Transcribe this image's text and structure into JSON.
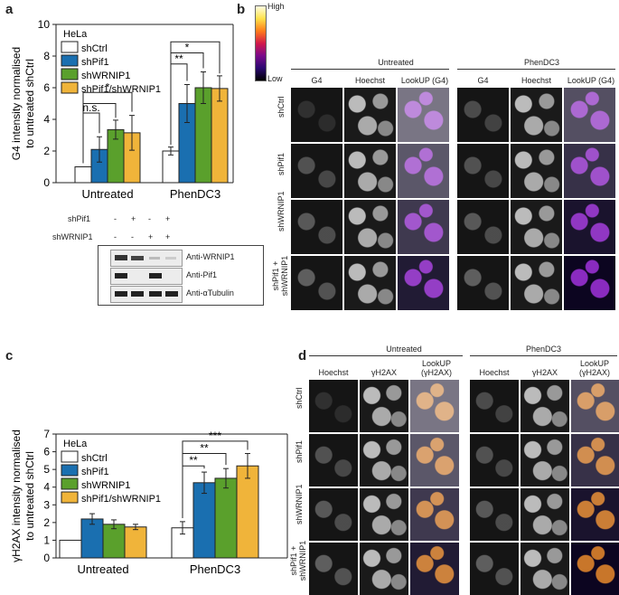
{
  "panels": {
    "a": "a",
    "b": "b",
    "c": "c",
    "d": "d"
  },
  "chart_a": {
    "cell_line": "HeLa",
    "ylabel": "G4 intensity normalised to untreated shCtrl",
    "ylim": [
      0,
      10
    ],
    "yticks": [
      "0",
      "2",
      "4",
      "6",
      "8",
      "10"
    ],
    "categories": [
      "Untreated",
      "PhenDC3"
    ],
    "series": [
      {
        "name": "shCtrl",
        "color": "#ffffff",
        "values": [
          1.0,
          2.0
        ],
        "errors": [
          0,
          0.25
        ]
      },
      {
        "name": "shPif1",
        "color": "#1a6fb0",
        "values": [
          2.1,
          5.0
        ],
        "errors": [
          0.8,
          1.2
        ]
      },
      {
        "name": "shWRNIP1",
        "color": "#5aa02c",
        "values": [
          3.35,
          6.0
        ],
        "errors": [
          0.6,
          1.0
        ]
      },
      {
        "name": "shPif1/shWRNIP1",
        "color": "#f0b43a",
        "values": [
          3.15,
          5.95
        ],
        "errors": [
          1.1,
          0.8
        ]
      }
    ],
    "annotations": [
      "n.s.",
      "*",
      "**",
      "*"
    ]
  },
  "blot": {
    "row_labels": [
      "shPif1",
      "shWRNIP1"
    ],
    "row1": [
      "-",
      "+",
      "-",
      "+"
    ],
    "row2": [
      "-",
      "-",
      "+",
      "+"
    ],
    "bands": [
      "Anti-WRNIP1",
      "Anti-Pif1",
      "Anti-αTubulin"
    ]
  },
  "chart_c": {
    "cell_line": "HeLa",
    "ylabel": "γH2AX intensity normalised to untreated shCtrl",
    "ylim": [
      0,
      7
    ],
    "yticks": [
      "0",
      "1",
      "2",
      "3",
      "4",
      "5",
      "6",
      "7"
    ],
    "categories": [
      "Untreated",
      "PhenDC3"
    ],
    "series": [
      {
        "name": "shCtrl",
        "color": "#ffffff",
        "values": [
          1.0,
          1.7
        ],
        "errors": [
          0,
          0.35
        ]
      },
      {
        "name": "shPif1",
        "color": "#1a6fb0",
        "values": [
          2.2,
          4.25
        ],
        "errors": [
          0.3,
          0.6
        ]
      },
      {
        "name": "shWRNIP1",
        "color": "#5aa02c",
        "values": [
          1.9,
          4.5
        ],
        "errors": [
          0.25,
          0.55
        ]
      },
      {
        "name": "shPif1/shWRNIP1",
        "color": "#f0b43a",
        "values": [
          1.75,
          5.2
        ],
        "errors": [
          0.15,
          0.7
        ]
      }
    ],
    "annotations": [
      "**",
      "**",
      "***"
    ]
  },
  "panel_b": {
    "scale": {
      "high": "High",
      "low": "Low"
    },
    "groups": [
      "Untreated",
      "PhenDC3"
    ],
    "columns": [
      "G4",
      "Hoechst",
      "LookUP (G4)",
      "G4",
      "Hoechst",
      "LookUP (G4)"
    ],
    "rows": [
      "shCtrl",
      "shPif1",
      "shWRNIP1",
      "shPif1 + shWRNIP1"
    ]
  },
  "panel_d": {
    "groups": [
      "Untreated",
      "PhenDC3"
    ],
    "columns": [
      "Hoechst",
      "γH2AX",
      "LookUP (γH2AX)",
      "Hoechst",
      "γH2AX",
      "LookUP (γH2AX)"
    ],
    "rows": [
      "shCtrl",
      "shPif1",
      "shWRNIP1",
      "shPif1 + shWRNIP1"
    ]
  }
}
